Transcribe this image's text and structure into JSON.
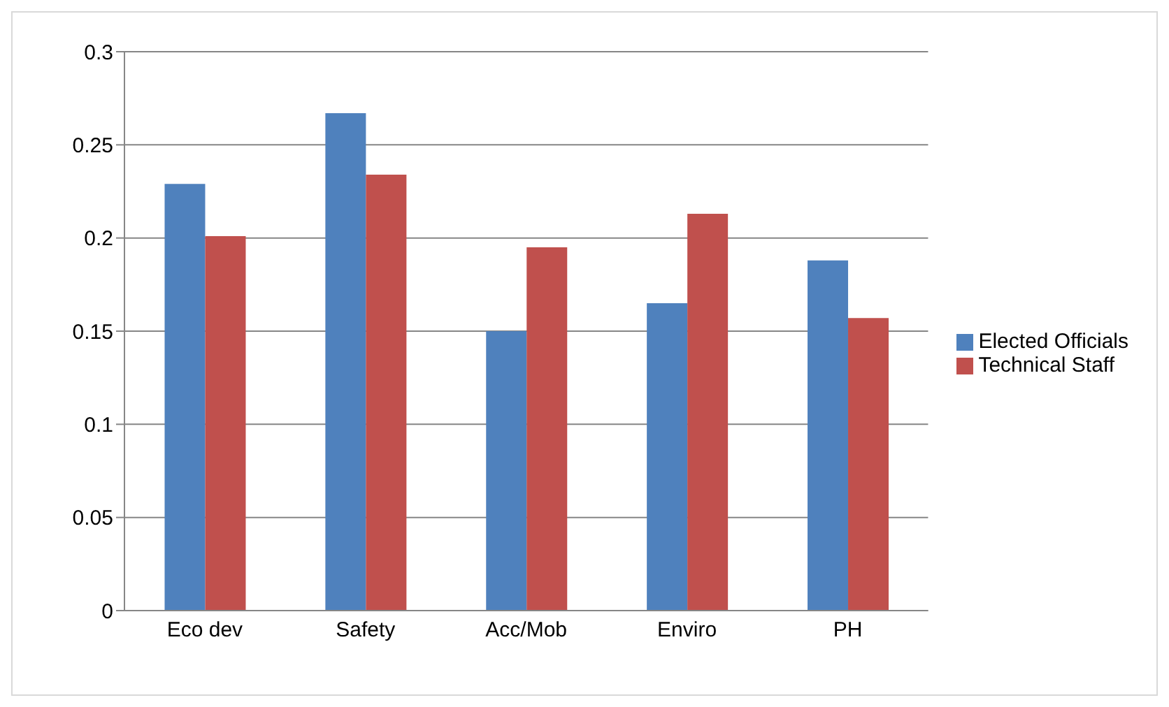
{
  "chart_data": {
    "type": "bar",
    "categories": [
      "Eco dev",
      "Safety",
      "Acc/Mob",
      "Enviro",
      "PH"
    ],
    "series": [
      {
        "name": "Elected Officials",
        "color": "#4f81bd",
        "values": [
          0.229,
          0.267,
          0.15,
          0.165,
          0.188
        ]
      },
      {
        "name": "Technical Staff",
        "color": "#c0504d",
        "values": [
          0.201,
          0.234,
          0.195,
          0.213,
          0.157
        ]
      }
    ],
    "ylim": [
      0,
      0.3
    ],
    "yticks": [
      0,
      0.05,
      0.1,
      0.15,
      0.2,
      0.25,
      0.3
    ],
    "grid": "y",
    "legend": "right"
  }
}
